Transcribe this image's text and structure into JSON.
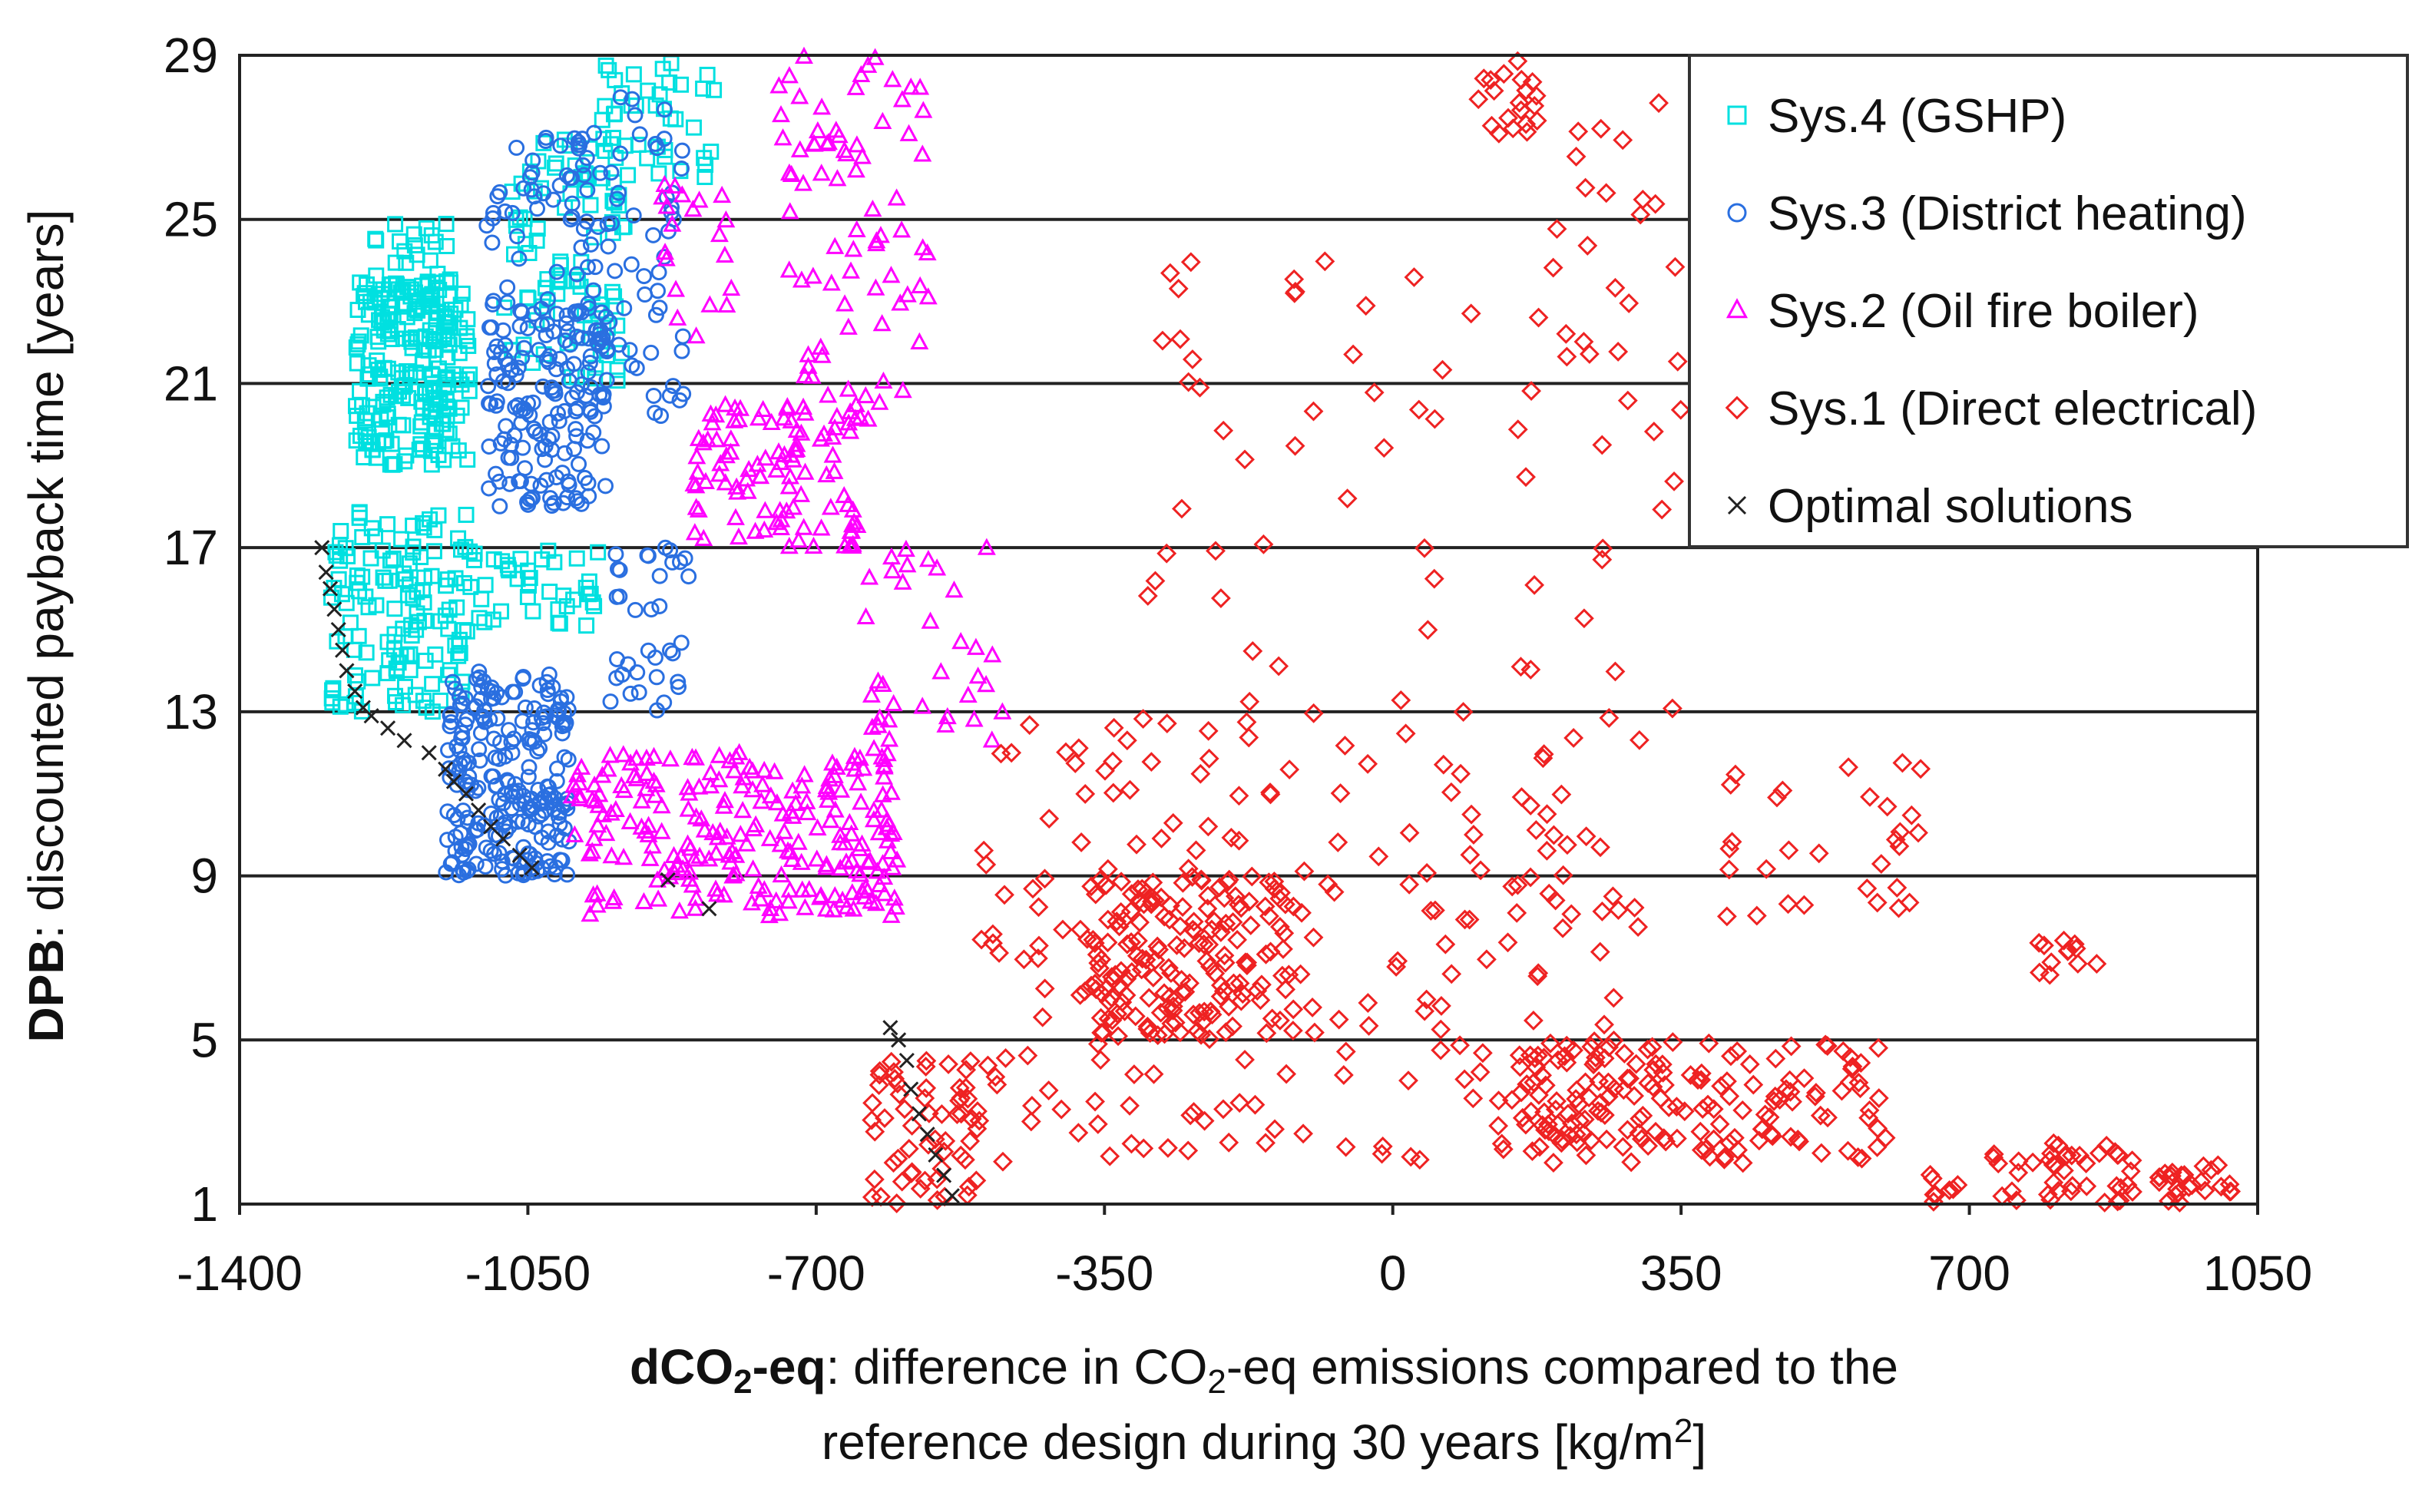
{
  "chart_data": {
    "type": "scatter",
    "title": "",
    "xlabel": {
      "bold": "dCO",
      "bold_sub": "2",
      "bold_tail": "-eq",
      "rest_a": ": difference in CO",
      "rest_sub": "2",
      "rest_b": "-eq emissions compared to the",
      "line2_a": "reference design during 30 years [kg/m",
      "line2_sup": "2",
      "line2_b": "]"
    },
    "ylabel": {
      "bold": "DPB",
      "rest": ": discounted payback time [years]"
    },
    "xlim": [
      -1400,
      1050
    ],
    "ylim": [
      1,
      29
    ],
    "xticks": [
      "-1400",
      "-1050",
      "-700",
      "-350",
      "0",
      "350",
      "700",
      "1050"
    ],
    "yticks": [
      "1",
      "5",
      "9",
      "13",
      "17",
      "21",
      "25",
      "29"
    ],
    "grid": "horizontal",
    "legend_position": "top-right",
    "colors": {
      "sys4": "#00e0e0",
      "sys3": "#2a6fe0",
      "sys2": "#ff00ff",
      "sys1": "#ee2222",
      "optimal": "#222222"
    },
    "legend": [
      {
        "key": "sys4",
        "label": "Sys.4 (GSHP)",
        "marker": "square"
      },
      {
        "key": "sys3",
        "label": "Sys.3 (District heating)",
        "marker": "circle"
      },
      {
        "key": "sys2",
        "label": "Sys.2 (Oil fire boiler)",
        "marker": "triangle"
      },
      {
        "key": "sys1",
        "label": "Sys.1 (Direct electrical)",
        "marker": "diamond"
      },
      {
        "key": "optimal",
        "label": "Optimal solutions",
        "marker": "cross"
      }
    ],
    "series": [
      {
        "key": "sys4",
        "name": "Sys.4 (GSHP)",
        "marker": "square",
        "clusters": [
          {
            "x": [
              -1260,
              -1120
            ],
            "y": [
              19,
              23.5
            ],
            "n": 200
          },
          {
            "x": [
              -1250,
              -1140
            ],
            "y": [
              22,
              25
            ],
            "n": 50
          },
          {
            "x": [
              -1080,
              -930
            ],
            "y": [
              21,
              27
            ],
            "n": 90
          },
          {
            "x": [
              -960,
              -820
            ],
            "y": [
              26,
              29
            ],
            "n": 40
          },
          {
            "x": [
              -1290,
              -1120
            ],
            "y": [
              13,
              18
            ],
            "n": 130
          },
          {
            "x": [
              -1120,
              -960
            ],
            "y": [
              15,
              17
            ],
            "n": 40
          }
        ]
      },
      {
        "key": "sys3",
        "name": "Sys.3 (District heating)",
        "marker": "circle",
        "clusters": [
          {
            "x": [
              -1150,
              -1000
            ],
            "y": [
              9,
              14
            ],
            "n": 240
          },
          {
            "x": [
              -1100,
              -950
            ],
            "y": [
              18,
              23
            ],
            "n": 160
          },
          {
            "x": [
              -1000,
              -860
            ],
            "y": [
              20,
              28
            ],
            "n": 80
          },
          {
            "x": [
              -1100,
              -960
            ],
            "y": [
              23,
              27
            ],
            "n": 35
          },
          {
            "x": [
              -950,
              -850
            ],
            "y": [
              13,
              17
            ],
            "n": 35
          }
        ]
      },
      {
        "key": "sys2",
        "name": "Sys.2 (Oil fire boiler)",
        "marker": "triangle",
        "clusters": [
          {
            "x": [
              -1000,
              -600
            ],
            "y": [
              8,
              12
            ],
            "n": 240
          },
          {
            "x": [
              -850,
              -650
            ],
            "y": [
              17,
              20.5
            ],
            "n": 100
          },
          {
            "x": [
              -750,
              -560
            ],
            "y": [
              20,
              29
            ],
            "n": 80
          },
          {
            "x": [
              -640,
              -470
            ],
            "y": [
              12,
              17
            ],
            "n": 35
          },
          {
            "x": [
              -900,
              -800
            ],
            "y": [
              22,
              26
            ],
            "n": 20
          }
        ]
      },
      {
        "key": "sys1",
        "name": "Sys.1 (Direct electrical)",
        "marker": "diamond",
        "clusters": [
          {
            "x": [
              -380,
              -120
            ],
            "y": [
              5,
              9
            ],
            "n": 150
          },
          {
            "x": [
              -640,
              -500
            ],
            "y": [
              1,
              4.5
            ],
            "n": 60
          },
          {
            "x": [
              150,
              600
            ],
            "y": [
              2,
              5
            ],
            "n": 160
          },
          {
            "x": [
              650,
              900
            ],
            "y": [
              1,
              2.5
            ],
            "n": 50
          },
          {
            "x": [
              930,
              1020
            ],
            "y": [
              1,
              2
            ],
            "n": 25
          },
          {
            "x": [
              -500,
              300
            ],
            "y": [
              2,
              13
            ],
            "n": 230
          },
          {
            "x": [
              150,
              350
            ],
            "y": [
              13,
              28
            ],
            "n": 40
          },
          {
            "x": [
              100,
              180
            ],
            "y": [
              27,
              29
            ],
            "n": 20
          },
          {
            "x": [
              400,
              650
            ],
            "y": [
              8,
              12
            ],
            "n": 30
          },
          {
            "x": [
              780,
              860
            ],
            "y": [
              6.5,
              7.5
            ],
            "n": 12
          },
          {
            "x": [
              -300,
              100
            ],
            "y": [
              13,
              24
            ],
            "n": 40
          }
        ]
      },
      {
        "key": "optimal",
        "name": "Optimal solutions",
        "marker": "cross",
        "points": [
          [
            -1300,
            17
          ],
          [
            -1295,
            16.4
          ],
          [
            -1290,
            16
          ],
          [
            -1285,
            15.5
          ],
          [
            -1280,
            15
          ],
          [
            -1275,
            14.5
          ],
          [
            -1270,
            14
          ],
          [
            -1260,
            13.5
          ],
          [
            -1250,
            13.1
          ],
          [
            -1240,
            12.9
          ],
          [
            -1220,
            12.6
          ],
          [
            -1200,
            12.3
          ],
          [
            -1170,
            12
          ],
          [
            -1150,
            11.6
          ],
          [
            -1140,
            11.3
          ],
          [
            -1125,
            11
          ],
          [
            -1110,
            10.6
          ],
          [
            -1095,
            10.2
          ],
          [
            -1080,
            9.9
          ],
          [
            -1060,
            9.5
          ],
          [
            -1045,
            9.2
          ],
          [
            -880,
            8.9
          ],
          [
            -830,
            8.2
          ],
          [
            -610,
            5.3
          ],
          [
            -600,
            5
          ],
          [
            -590,
            4.5
          ],
          [
            -585,
            3.8
          ],
          [
            -575,
            3.2
          ],
          [
            -565,
            2.7
          ],
          [
            -555,
            2.2
          ],
          [
            -545,
            1.7
          ],
          [
            -535,
            1.2
          ]
        ]
      }
    ]
  }
}
